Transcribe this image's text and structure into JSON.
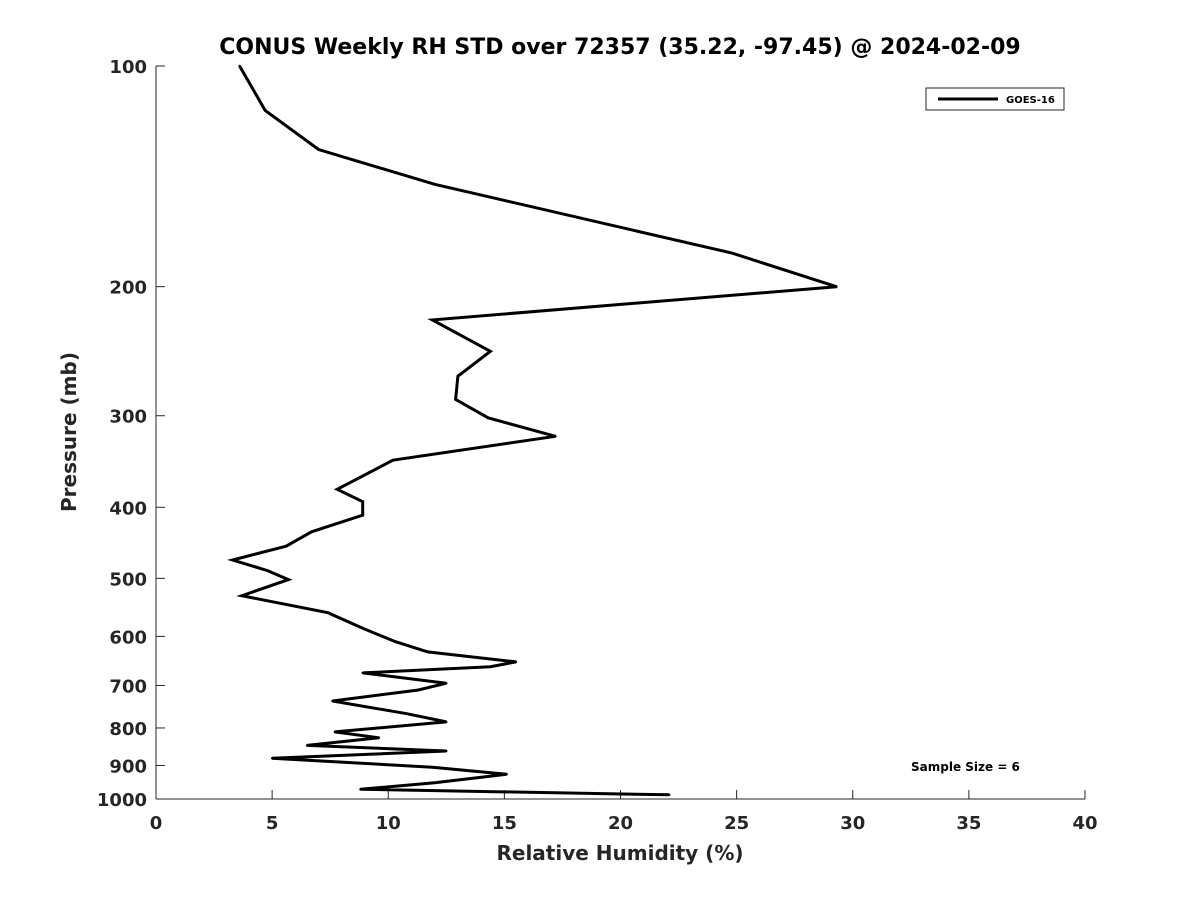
{
  "chart_data": {
    "type": "line",
    "title": "CONUS Weekly RH STD over 72357 (35.22, -97.45) @ 2024-02-09",
    "xlabel": "Relative Humidity (%)",
    "ylabel": "Pressure (mb)",
    "xlim": [
      0,
      40
    ],
    "ylim": [
      1000,
      100
    ],
    "y_scale": "log",
    "y_reversed": true,
    "x_ticks": [
      0,
      5,
      10,
      15,
      20,
      25,
      30,
      35,
      40
    ],
    "y_ticks": [
      100,
      200,
      300,
      400,
      500,
      600,
      700,
      800,
      900,
      1000
    ],
    "grid": false,
    "legend_position": "top-right",
    "series": [
      {
        "name": "GOES-16",
        "color": "#000000",
        "x": [
          3.6,
          4.7,
          7.0,
          12.0,
          24.8,
          29.3,
          11.9,
          14.4,
          13.0,
          12.9,
          14.3,
          17.2,
          10.2,
          7.8,
          8.9,
          8.9,
          6.7,
          5.6,
          3.3,
          4.8,
          5.7,
          3.7,
          7.4,
          8.9,
          10.3,
          11.7,
          15.5,
          14.4,
          8.9,
          12.5,
          11.3,
          7.6,
          10.8,
          12.5,
          7.7,
          9.6,
          6.5,
          12.5,
          5.0,
          11.9,
          15.1,
          12.0,
          8.8,
          22.1
        ],
        "y": [
          100,
          115,
          130,
          145,
          180,
          200,
          222,
          245,
          265,
          285,
          302,
          320,
          345,
          378,
          393,
          410,
          432,
          452,
          472,
          488,
          502,
          528,
          557,
          585,
          610,
          630,
          650,
          660,
          673,
          695,
          710,
          735,
          765,
          785,
          810,
          825,
          845,
          860,
          880,
          905,
          925,
          950,
          970,
          987
        ]
      }
    ],
    "annotations": [
      "Sample Size = 6"
    ]
  }
}
